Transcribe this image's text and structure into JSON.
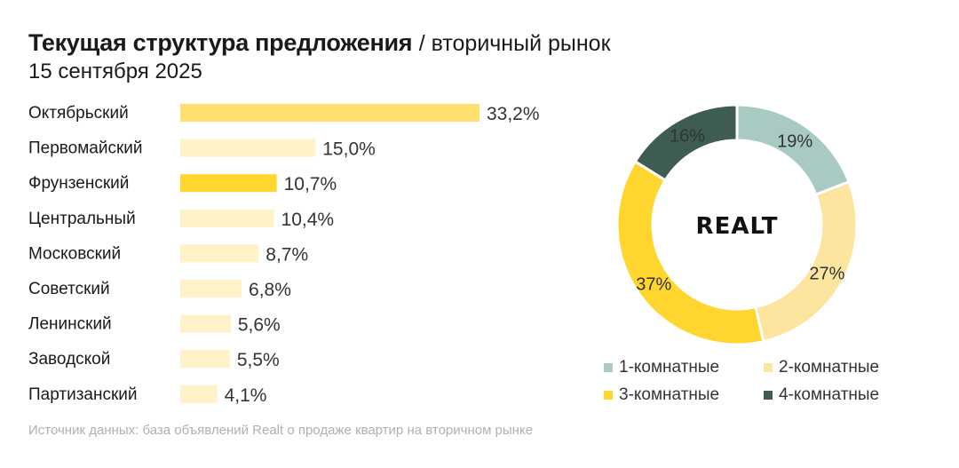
{
  "header": {
    "title": "Текущая структура предложения",
    "subtitle": "/ вторичный рынок",
    "date": "15 сентября 2025"
  },
  "footer": {
    "source": "Источник данных: база объявлений Realt о продаже квартир на вторичном рынке"
  },
  "brand": {
    "name": "REALT"
  },
  "colors": {
    "highlight_bar": "#ffd52e",
    "top_bar": "#ffdf6e",
    "regular_bar": "#fff1c8",
    "text": "#1a1a1a"
  },
  "chart_data": [
    {
      "type": "bar",
      "orientation": "horizontal",
      "categories": [
        "Октябрьский",
        "Первомайский",
        "Фрунзенский",
        "Центральный",
        "Московский",
        "Советский",
        "Ленинский",
        "Заводской",
        "Партизанский"
      ],
      "values": [
        33.2,
        15.0,
        10.7,
        10.4,
        8.7,
        6.8,
        5.6,
        5.5,
        4.1
      ],
      "labels": [
        "33,2%",
        "15,0%",
        "10,7%",
        "10,4%",
        "8,7%",
        "6,8%",
        "5,6%",
        "5,5%",
        "4,1%"
      ],
      "colors": [
        "#ffdf6e",
        "#fff1c8",
        "#ffd52e",
        "#fff1c8",
        "#fff1c8",
        "#fff1c8",
        "#fff1c8",
        "#fff1c8",
        "#fff1c8"
      ],
      "unit": "%"
    },
    {
      "type": "pie",
      "variant": "donut",
      "categories": [
        "1-комнатные",
        "2-комнатные",
        "3-комнатные",
        "4-комнатные"
      ],
      "values": [
        19,
        27,
        37,
        16
      ],
      "labels": [
        "19%",
        "27%",
        "37%",
        "16%"
      ],
      "colors": [
        "#a9c9c3",
        "#fde5a0",
        "#ffd52e",
        "#3e5c51"
      ],
      "legend_position": "bottom",
      "center_label": "REALT"
    }
  ]
}
